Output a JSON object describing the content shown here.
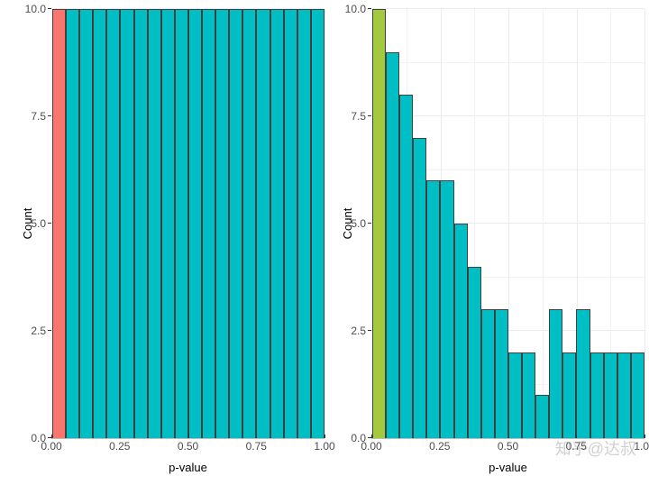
{
  "watermark": "知乎@达叔",
  "chart_left": {
    "type": "histogram",
    "xlabel": "p-value",
    "ylabel": "Count",
    "label_fontsize": 13,
    "tick_fontsize": 12,
    "background_color": "#ffffff",
    "grid_major_color": "#ebebeb",
    "grid_minor_color": "#f3f3f3",
    "bar_border_color": "#404040",
    "xlim": [
      0,
      1.0
    ],
    "ylim": [
      0,
      10
    ],
    "xticks": [
      0.0,
      0.25,
      0.5,
      0.75,
      1.0
    ],
    "xtick_labels": [
      "0.00",
      "0.25",
      "0.50",
      "0.75",
      "1.00"
    ],
    "yticks": [
      0.0,
      2.5,
      5.0,
      7.5,
      10.0
    ],
    "ytick_labels": [
      "0.0",
      "2.5",
      "5.0",
      "7.5",
      "10.0"
    ],
    "bin_width": 0.05,
    "values": [
      10,
      10,
      10,
      10,
      10,
      10,
      10,
      10,
      10,
      10,
      10,
      10,
      10,
      10,
      10,
      10,
      10,
      10,
      10,
      10
    ],
    "bar_colors": [
      "#f8766d",
      "#00bfc4",
      "#00bfc4",
      "#00bfc4",
      "#00bfc4",
      "#00bfc4",
      "#00bfc4",
      "#00bfc4",
      "#00bfc4",
      "#00bfc4",
      "#00bfc4",
      "#00bfc4",
      "#00bfc4",
      "#00bfc4",
      "#00bfc4",
      "#00bfc4",
      "#00bfc4",
      "#00bfc4",
      "#00bfc4",
      "#00bfc4"
    ]
  },
  "chart_right": {
    "type": "histogram",
    "xlabel": "p-value",
    "ylabel": "Count",
    "label_fontsize": 13,
    "tick_fontsize": 12,
    "background_color": "#ffffff",
    "grid_major_color": "#ebebeb",
    "grid_minor_color": "#f3f3f3",
    "bar_border_color": "#404040",
    "xlim": [
      0,
      1.0
    ],
    "ylim": [
      0,
      10
    ],
    "xticks": [
      0.0,
      0.25,
      0.5,
      0.75,
      1.0
    ],
    "xtick_labels": [
      "0.00",
      "0.25",
      "0.50",
      "0.75",
      "1.00"
    ],
    "yticks": [
      0.0,
      2.5,
      5.0,
      7.5,
      10.0
    ],
    "ytick_labels": [
      "0.0",
      "2.5",
      "5.0",
      "7.5",
      "10.0"
    ],
    "bin_width": 0.05,
    "values": [
      10,
      9,
      8,
      7,
      6,
      6,
      5,
      4,
      3,
      3,
      2,
      2,
      1,
      3,
      2,
      3,
      2,
      2,
      2,
      2
    ],
    "bar_colors": [
      "#a3c93f",
      "#00bfc4",
      "#00bfc4",
      "#00bfc4",
      "#00bfc4",
      "#00bfc4",
      "#00bfc4",
      "#00bfc4",
      "#00bfc4",
      "#00bfc4",
      "#00bfc4",
      "#00bfc4",
      "#00bfc4",
      "#00bfc4",
      "#00bfc4",
      "#00bfc4",
      "#00bfc4",
      "#00bfc4",
      "#00bfc4",
      "#00bfc4"
    ]
  }
}
